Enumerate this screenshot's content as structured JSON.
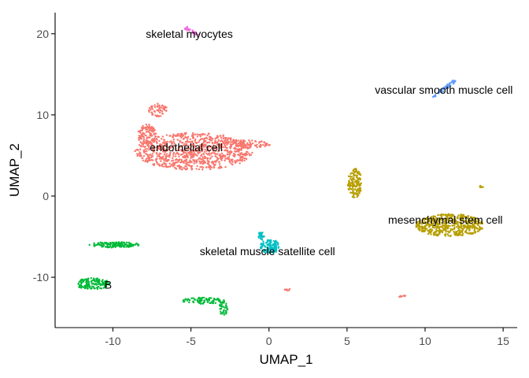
{
  "chart_data": {
    "type": "scatter",
    "title": "",
    "xlabel": "UMAP_1",
    "ylabel": "UMAP_2",
    "xlim": [
      -13.7,
      15.9
    ],
    "ylim": [
      -16.2,
      22.6
    ],
    "xticks": [
      -10,
      -5,
      0,
      5,
      10,
      15
    ],
    "xtick_labels": [
      "-10",
      "-5",
      "0",
      "5",
      "10",
      "15"
    ],
    "yticks": [
      -10,
      0,
      10,
      20
    ],
    "ytick_labels": [
      "-10",
      "0",
      "10",
      "20"
    ],
    "grid": false,
    "legend": "none",
    "point_color_groups": [
      {
        "color": "#F8766D",
        "note_regions": [
          {
            "shape": "ellipse",
            "cx": -4.8,
            "cy": 5.5,
            "rx": 3.8,
            "ry": 2.3,
            "n": 900
          },
          {
            "shape": "ellipse",
            "cx": -7.8,
            "cy": 7.5,
            "rx": 0.6,
            "ry": 1.4,
            "n": 120
          },
          {
            "shape": "ellipse",
            "cx": -7.1,
            "cy": 10.6,
            "rx": 0.6,
            "ry": 0.8,
            "n": 60
          },
          {
            "shape": "ellipse",
            "cx": -1.8,
            "cy": 6.4,
            "rx": 1.9,
            "ry": 0.5,
            "n": 100
          },
          {
            "shape": "ellipse",
            "cx": 1.2,
            "cy": -11.5,
            "rx": 0.2,
            "ry": 0.15,
            "n": 8
          },
          {
            "shape": "ellipse",
            "cx": 8.6,
            "cy": -12.4,
            "rx": 0.25,
            "ry": 0.15,
            "n": 8
          }
        ]
      },
      {
        "color": "#B79F00",
        "note_regions": [
          {
            "shape": "ellipse",
            "cx": 11.6,
            "cy": -3.6,
            "rx": 2.2,
            "ry": 1.4,
            "n": 500
          },
          {
            "shape": "ellipse",
            "cx": 5.5,
            "cy": 1.6,
            "rx": 0.45,
            "ry": 1.8,
            "n": 150
          },
          {
            "shape": "ellipse",
            "cx": 13.6,
            "cy": 1.1,
            "rx": 0.15,
            "ry": 0.2,
            "n": 6
          }
        ]
      },
      {
        "color": "#00BA38",
        "note_regions": [
          {
            "shape": "ellipse",
            "cx": -11.3,
            "cy": -10.8,
            "rx": 1.1,
            "ry": 0.7,
            "n": 160
          },
          {
            "shape": "ellipse",
            "cx": -9.9,
            "cy": -6.0,
            "rx": 1.6,
            "ry": 0.35,
            "n": 140
          },
          {
            "shape": "ellipse",
            "cx": -4.2,
            "cy": -12.9,
            "rx": 1.4,
            "ry": 0.4,
            "n": 80
          },
          {
            "shape": "ellipse",
            "cx": -2.9,
            "cy": -13.8,
            "rx": 0.3,
            "ry": 0.9,
            "n": 40
          }
        ]
      },
      {
        "color": "#00BFC4",
        "note_regions": [
          {
            "shape": "ellipse",
            "cx": 0.05,
            "cy": -6.2,
            "rx": 0.6,
            "ry": 0.9,
            "n": 120
          },
          {
            "shape": "ellipse",
            "cx": -0.5,
            "cy": -4.9,
            "rx": 0.2,
            "ry": 0.5,
            "n": 30
          }
        ]
      },
      {
        "color": "#619CFF",
        "note_regions": [
          {
            "shape": "line",
            "x1": 10.5,
            "y1": 12.2,
            "x2": 11.9,
            "y2": 14.2,
            "n": 60
          }
        ]
      },
      {
        "color": "#F564E3",
        "note_regions": [
          {
            "shape": "line",
            "x1": -5.4,
            "y1": 20.8,
            "x2": -4.6,
            "y2": 19.9,
            "n": 25
          }
        ]
      }
    ],
    "annotations": [
      {
        "text": "skeletal myocytes",
        "x": -5.1,
        "y": 20.0
      },
      {
        "text": "vascular smooth muscle cell",
        "x": 11.2,
        "y": 13.1
      },
      {
        "text": "endothelial cell",
        "x": -5.3,
        "y": 6.0
      },
      {
        "text": "mesenchymal stem cell",
        "x": 11.3,
        "y": -2.9
      },
      {
        "text": "skeletal muscle satellite cell",
        "x": -0.1,
        "y": -6.8
      },
      {
        "text": "B",
        "x": -10.3,
        "y": -10.9
      }
    ]
  }
}
